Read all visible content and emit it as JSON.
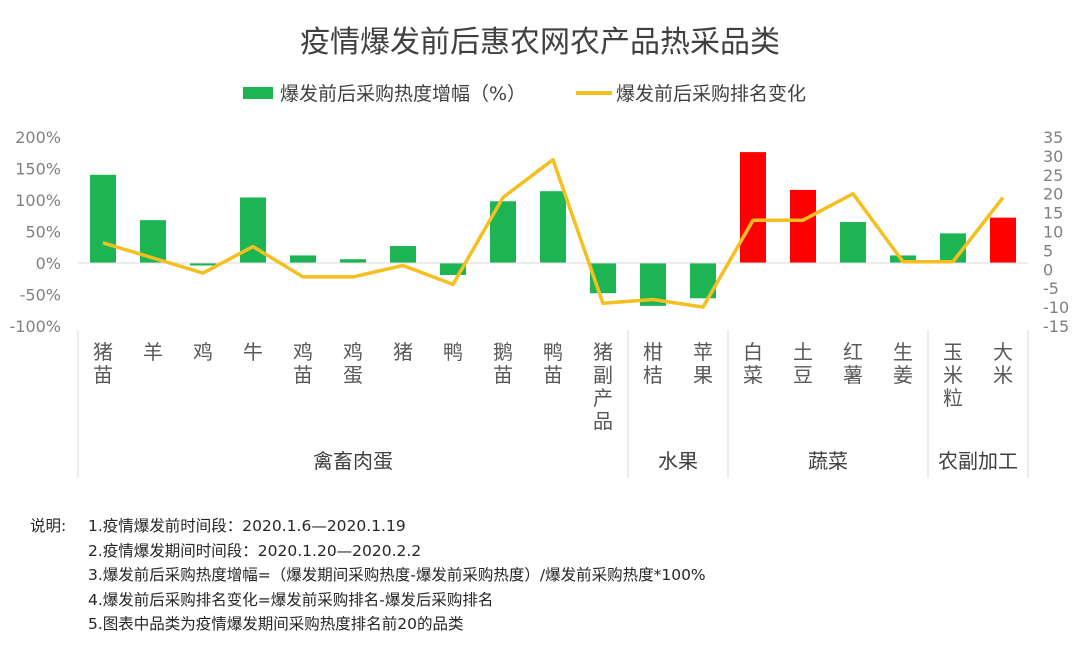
{
  "chart_data": {
    "type": "bar+line",
    "title": "疫情爆发前后惠农网农产品热采品类",
    "categories": [
      "猪苗",
      "羊",
      "鸡",
      "牛",
      "鸡苗",
      "鸡蛋",
      "猪",
      "鸭",
      "鹅苗",
      "鸭苗",
      "猪副产品",
      "柑桔",
      "苹果",
      "白菜",
      "土豆",
      "红薯",
      "生姜",
      "玉米粒",
      "大米"
    ],
    "groups": [
      {
        "name": "禽畜肉蛋",
        "count": 11
      },
      {
        "name": "水果",
        "count": 2
      },
      {
        "name": "蔬菜",
        "count": 4
      },
      {
        "name": "农副加工",
        "count": 2
      }
    ],
    "series": [
      {
        "name": "爆发前后采购热度增幅（%）",
        "type": "bar",
        "axis": "left",
        "unit": "%",
        "values": [
          140,
          68,
          -4,
          104,
          12,
          6,
          27,
          -19,
          98,
          114,
          -48,
          -68,
          -56,
          176,
          116,
          65,
          12,
          47,
          72
        ],
        "colors": [
          "#1db454",
          "#1db454",
          "#1db454",
          "#1db454",
          "#1db454",
          "#1db454",
          "#1db454",
          "#1db454",
          "#1db454",
          "#1db454",
          "#1db454",
          "#1db454",
          "#1db454",
          "#ff0000",
          "#ff0000",
          "#1db454",
          "#1db454",
          "#1db454",
          "#ff0000"
        ]
      },
      {
        "name": "爆发前后采购排名变化",
        "type": "line",
        "axis": "right",
        "values": [
          7,
          3,
          -1,
          6,
          -2,
          -2,
          1,
          -4,
          19,
          29,
          -9,
          -8,
          -10,
          13,
          13,
          20,
          2,
          2,
          19
        ]
      }
    ],
    "y_left": {
      "min": -100,
      "max": 200,
      "ticks": [
        "200%",
        "150%",
        "100%",
        "50%",
        "0%",
        "-50%",
        "-100%"
      ]
    },
    "y_right": {
      "min": -15,
      "max": 35,
      "ticks": [
        "35",
        "30",
        "25",
        "20",
        "15",
        "10",
        "5",
        "0",
        "-5",
        "-10",
        "-15"
      ]
    },
    "colors": {
      "bar_green": "#1db454",
      "bar_red": "#ff0000",
      "line": "#f5bf1f"
    },
    "legend_position": "top-center",
    "grid": false
  },
  "notes": {
    "label": "说明:",
    "lines": [
      "1.疫情爆发前时间段：2020.1.6—2020.1.19",
      "2.疫情爆发期间时间段：2020.1.20—2020.2.2",
      "3.爆发前后采购热度增幅=（爆发期间采购热度-爆发前采购热度）/爆发前采购热度*100%",
      "4.爆发前后采购排名变化=爆发前采购排名-爆发后采购排名",
      "5.图表中品类为疫情爆发期间采购热度排名前20的品类"
    ]
  }
}
